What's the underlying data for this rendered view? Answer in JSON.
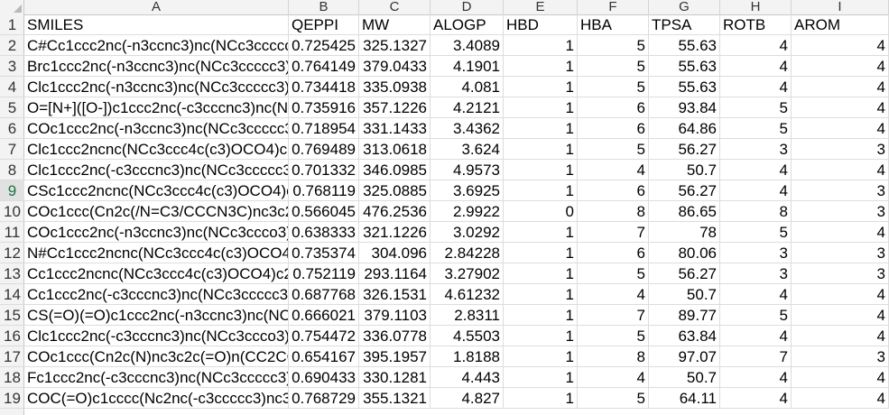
{
  "column_letters": [
    "A",
    "B",
    "C",
    "D",
    "E",
    "F",
    "G",
    "H",
    "I"
  ],
  "row_numbers": [
    "1",
    "2",
    "3",
    "4",
    "5",
    "6",
    "7",
    "8",
    "9",
    "10",
    "11",
    "12",
    "13",
    "14",
    "15",
    "16",
    "17",
    "18",
    "19"
  ],
  "selected_row": "9",
  "headers": [
    "SMILES",
    "QEPPI",
    "MW",
    "ALOGP",
    "HBD",
    "HBA",
    "TPSA",
    "ROTB",
    "AROM"
  ],
  "rows": [
    [
      "C#Cc1ccc2nc(-n3ccnc3)nc(NCc3ccccc",
      "0.725425",
      "325.1327",
      "3.4089",
      "1",
      "5",
      "55.63",
      "4",
      "4"
    ],
    [
      "Brc1ccc2nc(-n3ccnc3)nc(NCc3ccccc3)c",
      "0.764149",
      "379.0433",
      "4.1901",
      "1",
      "5",
      "55.63",
      "4",
      "4"
    ],
    [
      "Clc1ccc2nc(-n3ccnc3)nc(NCc3ccccc3)c",
      "0.734418",
      "335.0938",
      "4.081",
      "1",
      "5",
      "55.63",
      "4",
      "4"
    ],
    [
      "O=[N+]([O-])c1ccc2nc(-c3cccnc3)nc(N",
      "0.735916",
      "357.1226",
      "4.2121",
      "1",
      "6",
      "93.84",
      "5",
      "4"
    ],
    [
      "COc1ccc2nc(-n3ccnc3)nc(NCc3ccccc3",
      "0.718954",
      "331.1433",
      "3.4362",
      "1",
      "6",
      "64.86",
      "5",
      "4"
    ],
    [
      "Clc1ccc2ncnc(NCc3ccc4c(c3)OCO4)c2",
      "0.769489",
      "313.0618",
      "3.624",
      "1",
      "5",
      "56.27",
      "3",
      "3"
    ],
    [
      "Clc1ccc2nc(-c3cccnc3)nc(NCc3ccccc3)",
      "0.701332",
      "346.0985",
      "4.9573",
      "1",
      "4",
      "50.7",
      "4",
      "4"
    ],
    [
      "CSc1ccc2ncnc(NCc3ccc4c(c3)OCO4)c2",
      "0.768119",
      "325.0885",
      "3.6925",
      "1",
      "6",
      "56.27",
      "4",
      "3"
    ],
    [
      "COc1ccc(Cn2c(/N=C3/CCCN3C)nc3c2",
      "0.566045",
      "476.2536",
      "2.9922",
      "0",
      "8",
      "86.65",
      "8",
      "3"
    ],
    [
      "COc1ccc2nc(-n3ccnc3)nc(NCc3ccco3)",
      "0.638333",
      "321.1226",
      "3.0292",
      "1",
      "7",
      "78",
      "5",
      "4"
    ],
    [
      "N#Cc1ccc2ncnc(NCc3ccc4c(c3)OCO4)",
      "0.735374",
      "304.096",
      "2.84228",
      "1",
      "6",
      "80.06",
      "3",
      "3"
    ],
    [
      "Cc1ccc2ncnc(NCc3ccc4c(c3)OCO4)c2c",
      "0.752119",
      "293.1164",
      "3.27902",
      "1",
      "5",
      "56.27",
      "3",
      "3"
    ],
    [
      "Cc1ccc2nc(-c3cccnc3)nc(NCc3ccccc3)c",
      "0.687768",
      "326.1531",
      "4.61232",
      "1",
      "4",
      "50.7",
      "4",
      "4"
    ],
    [
      "CS(=O)(=O)c1ccc2nc(-n3ccnc3)nc(NC",
      "0.666021",
      "379.1103",
      "2.8311",
      "1",
      "7",
      "89.77",
      "5",
      "4"
    ],
    [
      "Clc1ccc2nc(-c3cccnc3)nc(NCc3ccco3)c",
      "0.754472",
      "336.0778",
      "4.5503",
      "1",
      "5",
      "63.84",
      "4",
      "4"
    ],
    [
      "COc1ccc(Cn2c(N)nc3c2c(=O)n(CC2CC",
      "0.654167",
      "395.1957",
      "1.8188",
      "1",
      "8",
      "97.07",
      "7",
      "3"
    ],
    [
      "Fc1ccc2nc(-c3cccnc3)nc(NCc3ccccc3)c",
      "0.690433",
      "330.1281",
      "4.443",
      "1",
      "4",
      "50.7",
      "4",
      "4"
    ],
    [
      "COC(=O)c1cccc(Nc2nc(-c3ccccc3)nc3",
      "0.768729",
      "355.1321",
      "4.827",
      "1",
      "5",
      "64.11",
      "4",
      "4"
    ]
  ]
}
